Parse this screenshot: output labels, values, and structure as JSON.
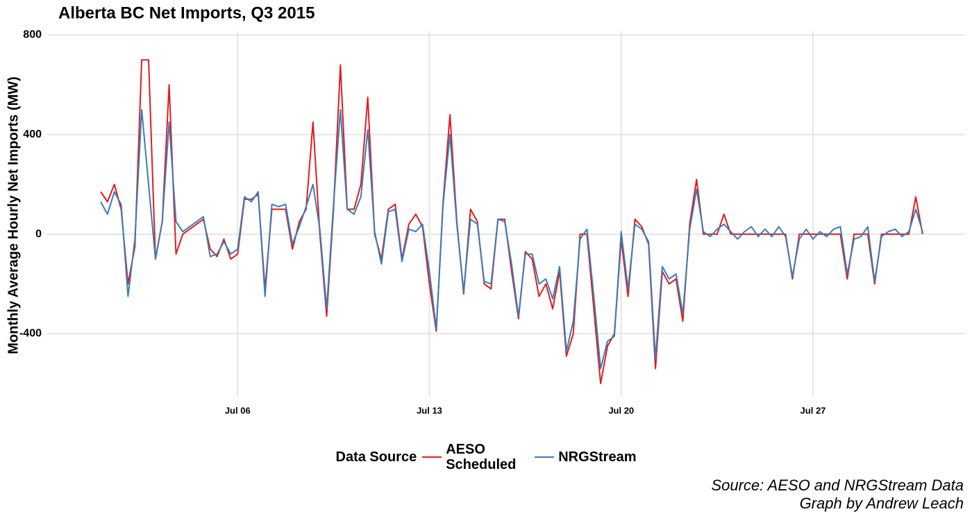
{
  "chart_data": {
    "type": "line",
    "title": "Alberta BC Net Imports, Q3 2015",
    "y_label": "Monthly Average Hourly Net Imports (MW)",
    "legend_title": "Data Source",
    "caption": [
      "Source: AESO and NRGStream Data",
      "Graph by Andrew Leach"
    ],
    "xlim": [
      -0.95,
      32.55
    ],
    "ylim": [
      -650,
      815
    ],
    "xticks": [
      {
        "value": 6,
        "label": "Jul 06"
      },
      {
        "value": 13,
        "label": "Jul 13"
      },
      {
        "value": 20,
        "label": "Jul 20"
      },
      {
        "value": 27,
        "label": "Jul 27"
      }
    ],
    "yticks": [
      -400,
      0,
      400,
      800
    ],
    "grid": true,
    "x": [
      1,
      1.25,
      1.5,
      1.75,
      2,
      2.25,
      2.5,
      2.75,
      3,
      3.25,
      3.5,
      3.75,
      4,
      4.25,
      4.5,
      4.75,
      5,
      5.25,
      5.5,
      5.75,
      6,
      6.25,
      6.5,
      6.75,
      7,
      7.25,
      7.5,
      7.75,
      8,
      8.25,
      8.5,
      8.75,
      9,
      9.25,
      9.5,
      9.75,
      10,
      10.25,
      10.5,
      10.75,
      11,
      11.25,
      11.5,
      11.75,
      12,
      12.25,
      12.5,
      12.75,
      13,
      13.25,
      13.5,
      13.75,
      14,
      14.25,
      14.5,
      14.75,
      15,
      15.25,
      15.5,
      15.75,
      16,
      16.25,
      16.5,
      16.75,
      17,
      17.25,
      17.5,
      17.75,
      18,
      18.25,
      18.5,
      18.75,
      19,
      19.25,
      19.5,
      19.75,
      20,
      20.25,
      20.5,
      20.75,
      21,
      21.25,
      21.5,
      21.75,
      22,
      22.25,
      22.5,
      22.75,
      23,
      23.25,
      23.5,
      23.75,
      24,
      24.25,
      24.5,
      24.75,
      25,
      25.25,
      25.5,
      25.75,
      26,
      26.25,
      26.5,
      26.75,
      27,
      27.25,
      27.5,
      27.75,
      28,
      28.25,
      28.5,
      28.75,
      29,
      29.25,
      29.5,
      29.75,
      30,
      30.25,
      30.5,
      30.75,
      31
    ],
    "series": [
      {
        "name": "AESO Scheduled",
        "color": "#e41a1c",
        "values": [
          170,
          130,
          200,
          100,
          -200,
          -50,
          700,
          700,
          -100,
          50,
          600,
          -80,
          0,
          20,
          40,
          60,
          -60,
          -90,
          -20,
          -100,
          -80,
          140,
          140,
          160,
          -220,
          100,
          100,
          100,
          -60,
          50,
          100,
          450,
          0,
          -330,
          100,
          680,
          100,
          100,
          200,
          550,
          0,
          -100,
          100,
          120,
          -100,
          40,
          80,
          30,
          -200,
          -390,
          130,
          480,
          50,
          -240,
          100,
          50,
          -200,
          -220,
          60,
          60,
          -150,
          -340,
          -70,
          -100,
          -250,
          -200,
          -300,
          -150,
          -490,
          -400,
          0,
          0,
          -300,
          -600,
          -450,
          -400,
          -20,
          -250,
          60,
          30,
          -40,
          -540,
          -150,
          -200,
          -180,
          -350,
          40,
          220,
          0,
          0,
          0,
          80,
          0,
          0,
          0,
          0,
          0,
          0,
          0,
          0,
          0,
          -180,
          0,
          0,
          0,
          0,
          0,
          0,
          0,
          -180,
          0,
          0,
          0,
          -200,
          0,
          0,
          0,
          0,
          0,
          150,
          0
        ]
      },
      {
        "name": "NRGStream",
        "color": "#377eb8",
        "values": [
          130,
          80,
          170,
          120,
          -250,
          -20,
          500,
          200,
          -100,
          50,
          450,
          50,
          10,
          30,
          50,
          70,
          -90,
          -80,
          -30,
          -80,
          -60,
          150,
          130,
          170,
          -250,
          120,
          110,
          120,
          -40,
          30,
          110,
          200,
          20,
          -300,
          120,
          500,
          100,
          80,
          150,
          420,
          10,
          -120,
          90,
          100,
          -110,
          20,
          10,
          40,
          -150,
          -380,
          120,
          400,
          40,
          -230,
          60,
          40,
          -190,
          -200,
          60,
          50,
          -120,
          -330,
          -80,
          -80,
          -200,
          -180,
          -260,
          -130,
          -470,
          -350,
          -20,
          20,
          -250,
          -540,
          -430,
          -410,
          10,
          -220,
          40,
          20,
          -30,
          -500,
          -130,
          -180,
          -160,
          -320,
          20,
          180,
          10,
          -10,
          20,
          40,
          10,
          -20,
          10,
          30,
          -10,
          20,
          -10,
          30,
          -10,
          -170,
          -20,
          20,
          -20,
          10,
          -10,
          20,
          30,
          -160,
          -20,
          -10,
          30,
          -190,
          -10,
          10,
          20,
          -10,
          10,
          100,
          10
        ]
      }
    ]
  }
}
